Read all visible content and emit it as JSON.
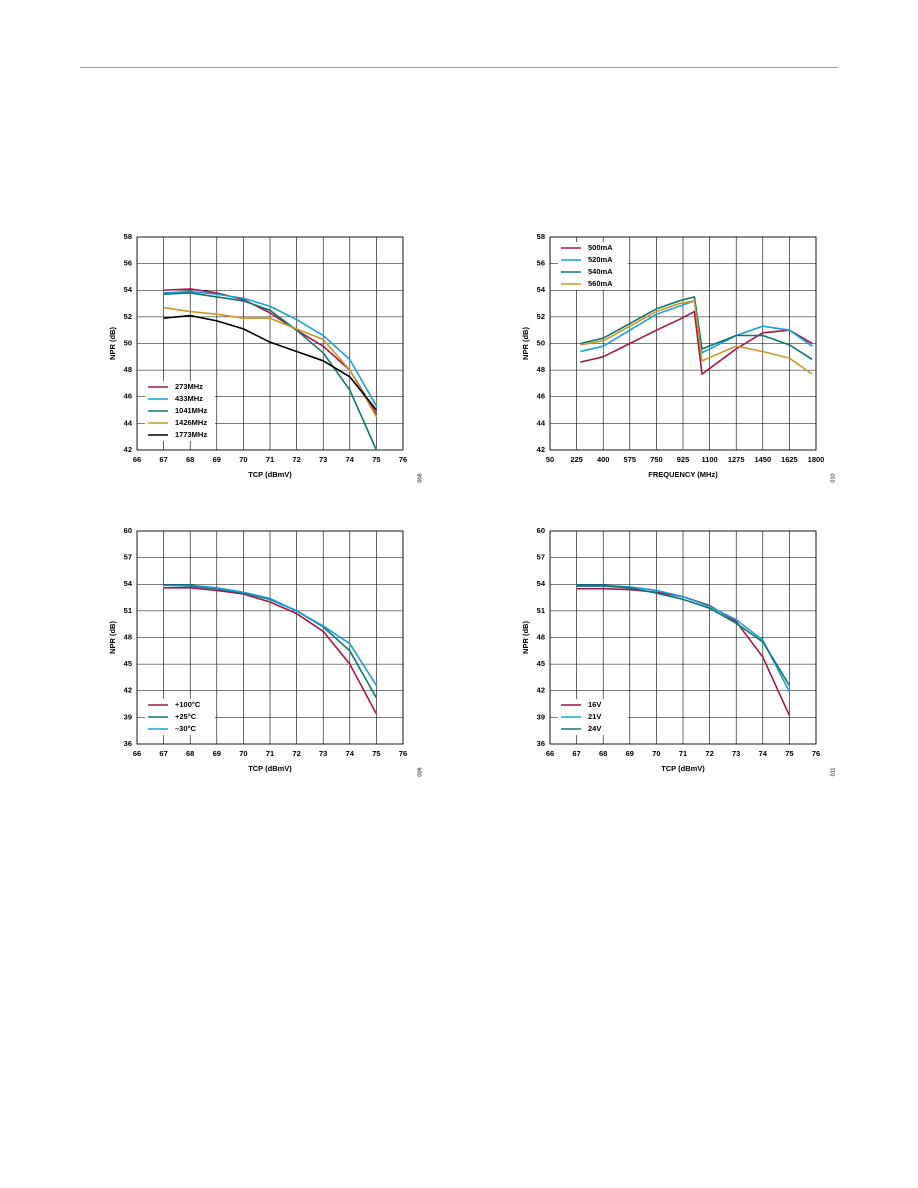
{
  "chart_data": [
    {
      "type": "line",
      "figure_number": "008",
      "xlabel": "TCP (dBmV)",
      "ylabel": "NPR (dB)",
      "x": [
        67,
        68,
        69,
        70,
        71,
        72,
        73,
        74,
        75
      ],
      "xlim": [
        66,
        76
      ],
      "xticks": [
        66,
        67,
        68,
        69,
        70,
        71,
        72,
        73,
        74,
        75,
        76
      ],
      "ylim": [
        42,
        58
      ],
      "yticks": [
        42,
        44,
        46,
        48,
        50,
        52,
        54,
        56,
        58
      ],
      "grid": true,
      "legend": "lower left",
      "series": [
        {
          "name": "273MHz",
          "color": "#a3174a",
          "values": [
            54.0,
            54.1,
            53.8,
            53.3,
            52.3,
            51.0,
            49.8,
            48.0,
            44.7
          ]
        },
        {
          "name": "433MHz",
          "color": "#1aa0d8",
          "values": [
            53.8,
            53.9,
            53.7,
            53.4,
            52.8,
            51.8,
            50.6,
            48.8,
            45.3
          ]
        },
        {
          "name": "1041MHz",
          "color": "#11766e",
          "values": [
            53.7,
            53.8,
            53.5,
            53.2,
            52.5,
            51.0,
            49.3,
            46.5,
            42.0
          ]
        },
        {
          "name": "1426MHz",
          "color": "#c9962b",
          "values": [
            52.7,
            52.4,
            52.2,
            51.9,
            51.9,
            51.1,
            50.3,
            48.0,
            44.5
          ]
        },
        {
          "name": "1773MHz",
          "color": "#000000",
          "values": [
            51.9,
            52.1,
            51.7,
            51.1,
            50.1,
            49.4,
            48.7,
            47.5,
            45.0
          ]
        }
      ]
    },
    {
      "type": "line",
      "figure_number": "010",
      "xlabel": "FREQUENCY (MHz)",
      "ylabel": "NPR (dB)",
      "x": [
        250,
        400,
        575,
        750,
        900,
        1000,
        1050,
        1275,
        1450,
        1625,
        1775
      ],
      "xlim": [
        50,
        1800
      ],
      "xticks": [
        50,
        225,
        400,
        575,
        750,
        925,
        1100,
        1275,
        1450,
        1625,
        1800
      ],
      "ylim": [
        42,
        58
      ],
      "yticks": [
        42,
        44,
        46,
        48,
        50,
        52,
        54,
        56,
        58
      ],
      "grid": true,
      "legend": "upper left",
      "series": [
        {
          "name": "500mA",
          "color": "#a3174a",
          "values": [
            48.6,
            49.0,
            50.0,
            51.0,
            51.8,
            52.4,
            47.7,
            49.6,
            50.8,
            51.0,
            50.0
          ]
        },
        {
          "name": "520mA",
          "color": "#1aa0d8",
          "values": [
            49.4,
            49.8,
            51.0,
            52.2,
            52.8,
            53.2,
            49.3,
            50.6,
            51.3,
            51.0,
            49.8
          ]
        },
        {
          "name": "540mA",
          "color": "#11766e",
          "values": [
            50.0,
            50.4,
            51.5,
            52.6,
            53.2,
            53.5,
            49.6,
            50.6,
            50.6,
            49.9,
            48.8
          ]
        },
        {
          "name": "560mA",
          "color": "#c9962b",
          "values": [
            49.9,
            50.2,
            51.3,
            52.4,
            53.0,
            53.2,
            48.7,
            49.8,
            49.4,
            48.9,
            47.7
          ]
        }
      ]
    },
    {
      "type": "line",
      "figure_number": "009",
      "xlabel": "TCP (dBmV)",
      "ylabel": "NPR (dB)",
      "x": [
        67,
        68,
        69,
        70,
        71,
        72,
        73,
        74,
        75
      ],
      "xlim": [
        66,
        76
      ],
      "xticks": [
        66,
        67,
        68,
        69,
        70,
        71,
        72,
        73,
        74,
        75,
        76
      ],
      "ylim": [
        36,
        60
      ],
      "yticks": [
        36,
        39,
        42,
        45,
        48,
        51,
        54,
        57,
        60
      ],
      "grid": true,
      "legend": "lower left",
      "series": [
        {
          "name": "+100°C",
          "color": "#a3174a",
          "values": [
            53.6,
            53.6,
            53.3,
            52.9,
            52.0,
            50.7,
            48.7,
            45.0,
            39.4
          ]
        },
        {
          "name": "+25°C",
          "color": "#11766e",
          "values": [
            53.9,
            53.8,
            53.5,
            53.0,
            52.3,
            51.0,
            49.2,
            46.5,
            41.2
          ]
        },
        {
          "name": "–30°C",
          "color": "#1aa0d8",
          "values": [
            53.9,
            53.9,
            53.6,
            53.1,
            52.4,
            51.0,
            49.3,
            47.3,
            42.6
          ]
        }
      ]
    },
    {
      "type": "line",
      "figure_number": "011",
      "xlabel": "TCP (dBmV)",
      "ylabel": "NPR (dB)",
      "x": [
        67,
        68,
        69,
        70,
        71,
        72,
        73,
        74,
        75
      ],
      "xlim": [
        66,
        76
      ],
      "xticks": [
        66,
        67,
        68,
        69,
        70,
        71,
        72,
        73,
        74,
        75,
        76
      ],
      "ylim": [
        36,
        60
      ],
      "yticks": [
        36,
        39,
        42,
        45,
        48,
        51,
        54,
        57,
        60
      ],
      "grid": true,
      "legend": "lower left",
      "series": [
        {
          "name": "16V",
          "color": "#a3174a",
          "values": [
            53.5,
            53.5,
            53.4,
            53.1,
            52.6,
            51.6,
            49.8,
            45.8,
            39.2
          ]
        },
        {
          "name": "21V",
          "color": "#1aa0d8",
          "values": [
            53.9,
            53.9,
            53.7,
            53.3,
            52.6,
            51.5,
            50.0,
            47.7,
            41.9
          ]
        },
        {
          "name": "24V",
          "color": "#11766e",
          "values": [
            53.8,
            53.8,
            53.6,
            53.0,
            52.3,
            51.3,
            49.6,
            47.5,
            42.6
          ]
        }
      ]
    }
  ]
}
